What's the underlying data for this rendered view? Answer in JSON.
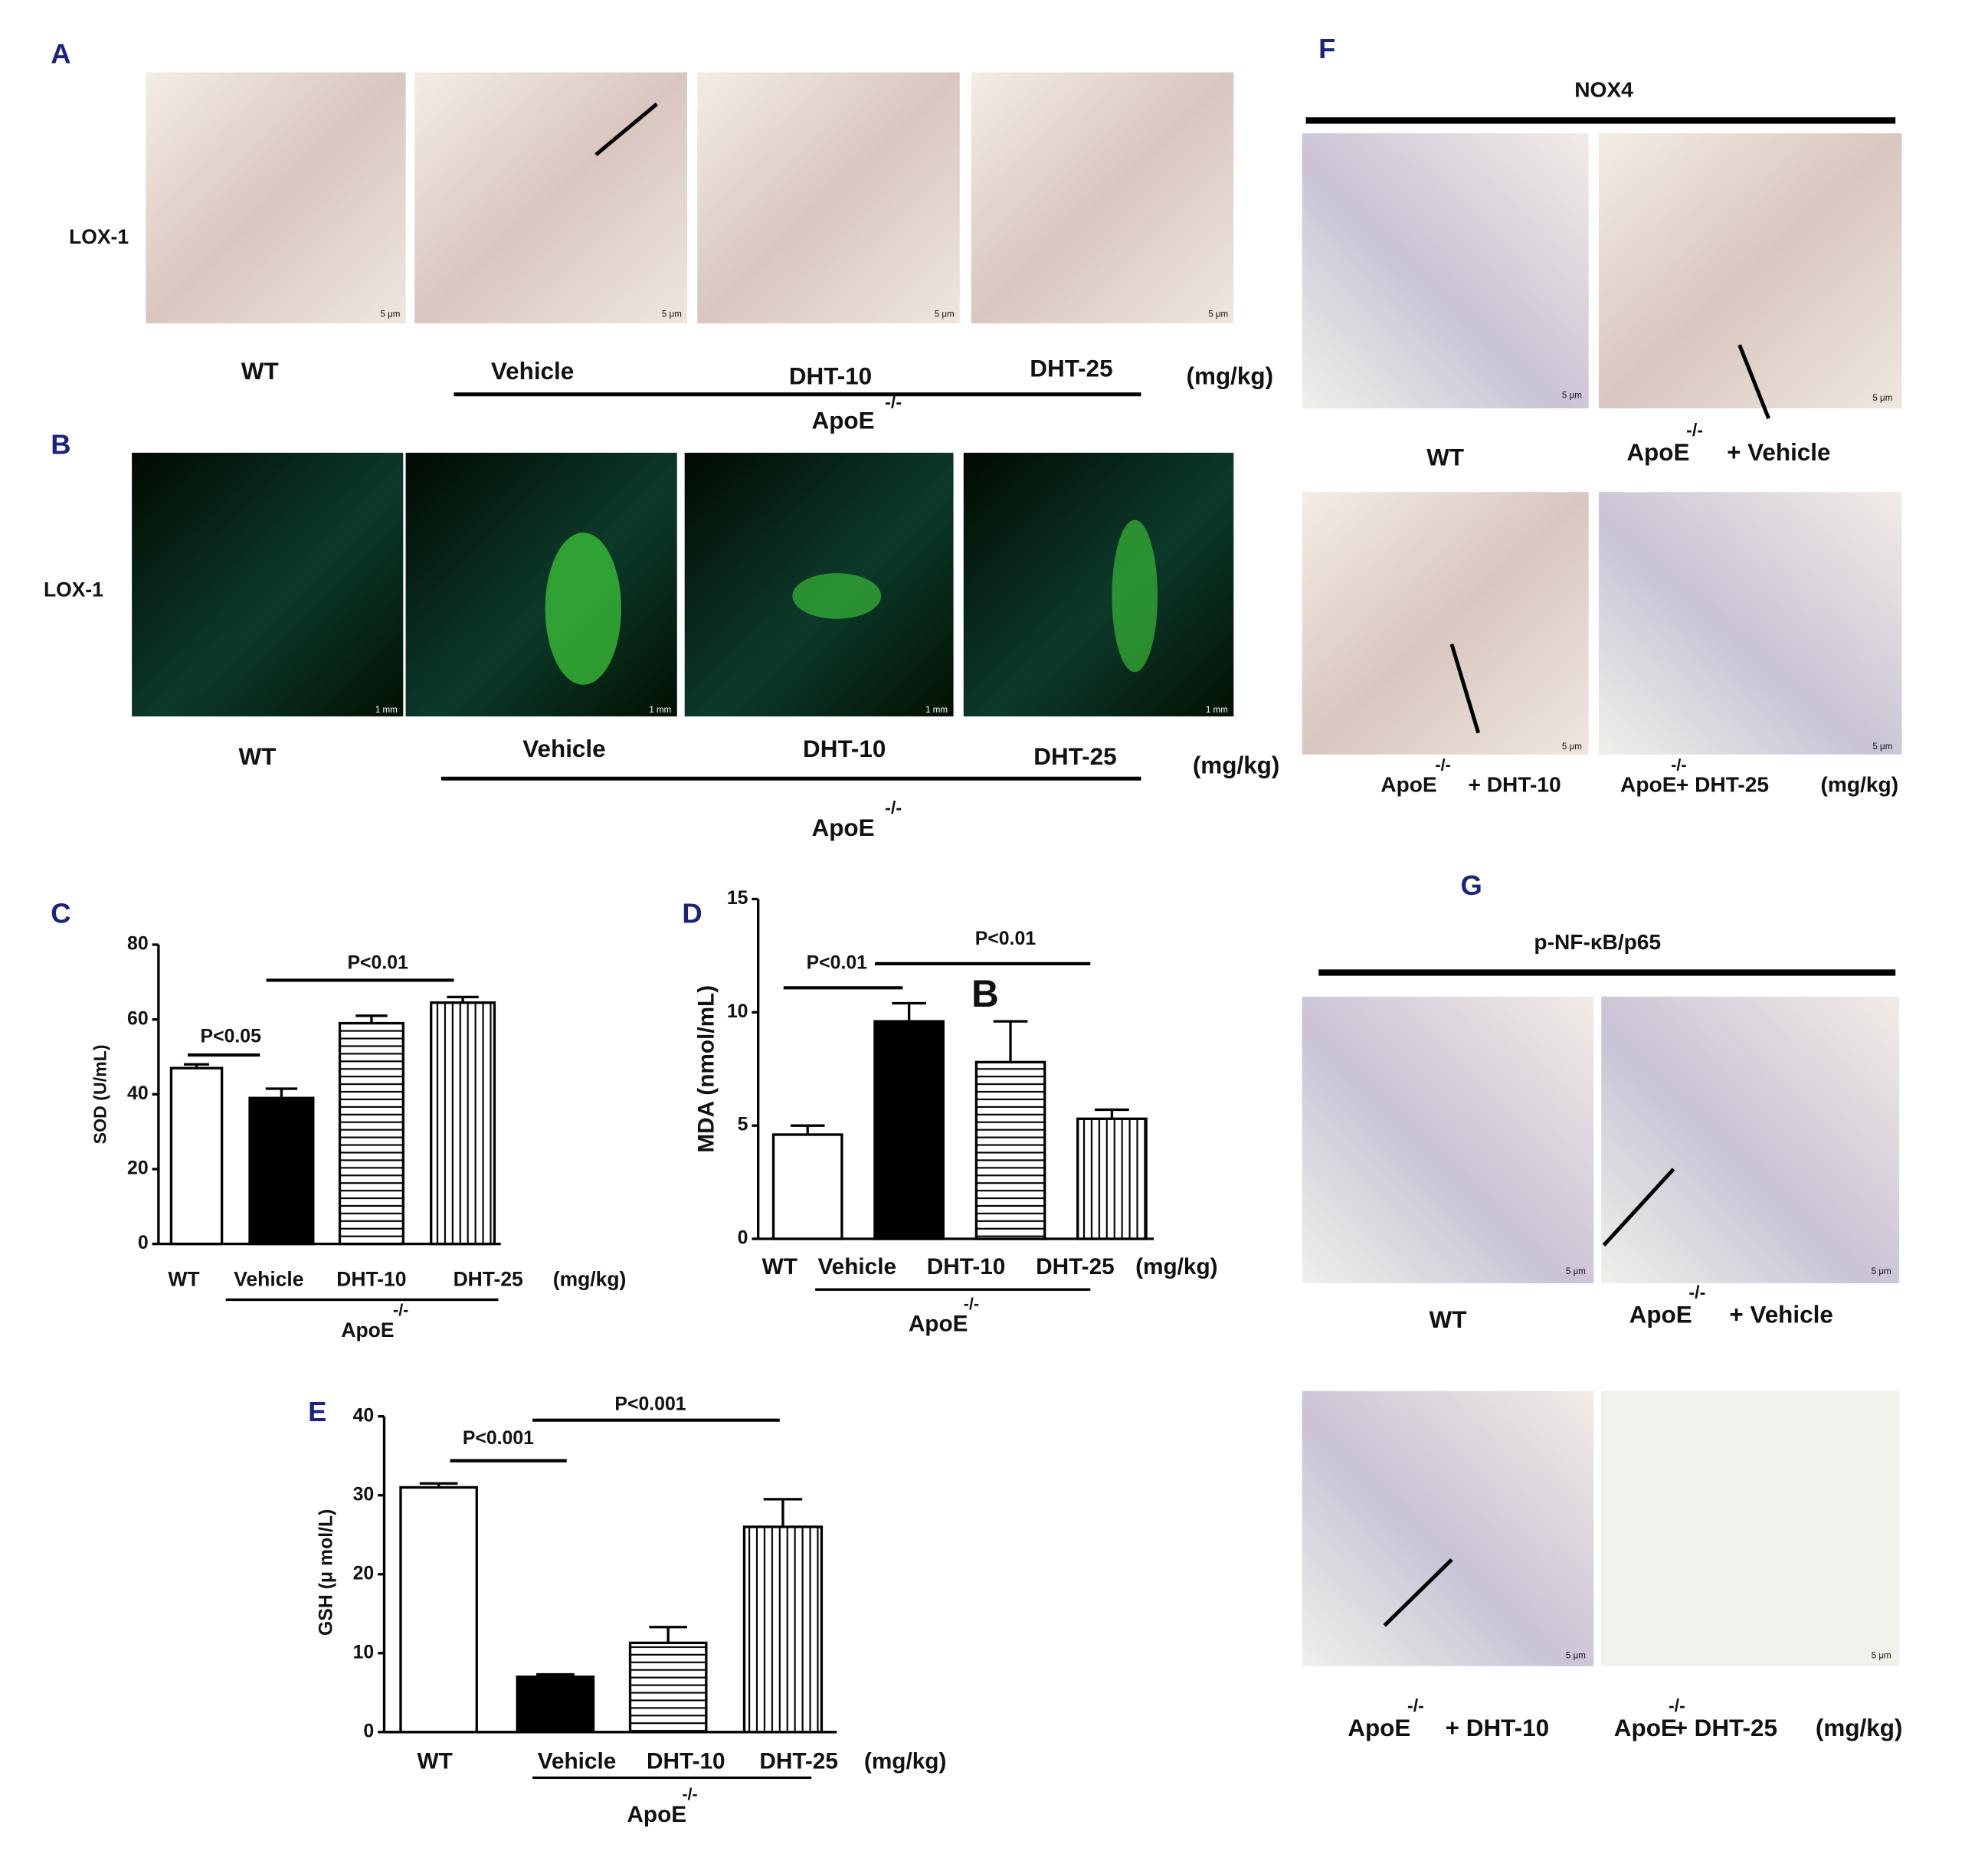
{
  "panels": {
    "A": {
      "letter": "A",
      "stain": "LOX-1",
      "scale": "5 μm",
      "labels": [
        "WT",
        "Vehicle",
        "DHT-10",
        "DHT-25"
      ],
      "unit": "(mg/kg)",
      "group": "ApoE",
      "group_sup": "-/-"
    },
    "B": {
      "letter": "B",
      "stain": "LOX-1",
      "scale": "1 mm",
      "labels": [
        "WT",
        "Vehicle",
        "DHT-10",
        "DHT-25"
      ],
      "unit": "(mg/kg)",
      "group": "ApoE",
      "group_sup": "-/-"
    },
    "F": {
      "letter": "F",
      "title": "NOX4",
      "scale": "5 μm",
      "labels": [
        "WT",
        "+ Vehicle",
        "+ DHT-10",
        "+ DHT-25"
      ],
      "unit": "(mg/kg)",
      "group": "ApoE",
      "group_sup": "-/-"
    },
    "G": {
      "letter": "G",
      "title": "p-NF-κB/p65",
      "scale": "5 μm",
      "labels": [
        "WT",
        "+ Vehicle",
        "+ DHT-10",
        "+ DHT-25"
      ],
      "unit": "(mg/kg)",
      "group": "ApoE",
      "group_sup": "-/-"
    }
  },
  "chart_data": [
    {
      "type": "bar",
      "letter": "C",
      "y_label": "SOD (U/mL)",
      "categories": [
        "WT",
        "Vehicle",
        "DHT-10",
        "DHT-25"
      ],
      "values": [
        47,
        39,
        59,
        64.5
      ],
      "errors": [
        1,
        2.5,
        2,
        1.5
      ],
      "patterns": [
        "white",
        "black",
        "horizontal",
        "vertical"
      ],
      "ylim": [
        0,
        80
      ],
      "yticks": [
        0,
        20,
        40,
        60,
        80
      ],
      "unit": "(mg/kg)",
      "group": "ApoE",
      "group_sup": "-/-",
      "annotations": [
        "P<0.05",
        "P<0.01"
      ]
    },
    {
      "type": "bar",
      "letter": "D",
      "y_label": "MDA (nmol/mL)",
      "categories": [
        "WT",
        "Vehicle",
        "DHT-10",
        "DHT-25"
      ],
      "values": [
        4.6,
        9.6,
        7.8,
        5.3
      ],
      "errors": [
        0.4,
        0.8,
        1.8,
        0.4
      ],
      "patterns": [
        "white",
        "black",
        "horizontal",
        "vertical"
      ],
      "ylim": [
        0,
        15
      ],
      "yticks": [
        0,
        5,
        10,
        15
      ],
      "unit": "(mg/kg)",
      "group": "ApoE",
      "group_sup": "-/-",
      "annotations": [
        "P<0.01",
        "P<0.01",
        "B"
      ]
    },
    {
      "type": "bar",
      "letter": "E",
      "y_label": "GSH (μ mol/L)",
      "categories": [
        "WT",
        "Vehicle",
        "DHT-10",
        "DHT-25"
      ],
      "values": [
        31,
        7,
        11.3,
        26
      ],
      "errors": [
        0.5,
        0.3,
        2,
        3.5
      ],
      "patterns": [
        "white",
        "black",
        "horizontal",
        "vertical"
      ],
      "ylim": [
        0,
        40
      ],
      "yticks": [
        0,
        10,
        20,
        30,
        40
      ],
      "unit": "(mg/kg)",
      "group": "ApoE",
      "group_sup": "-/-",
      "annotations": [
        "P<0.001",
        "P<0.001"
      ]
    }
  ]
}
